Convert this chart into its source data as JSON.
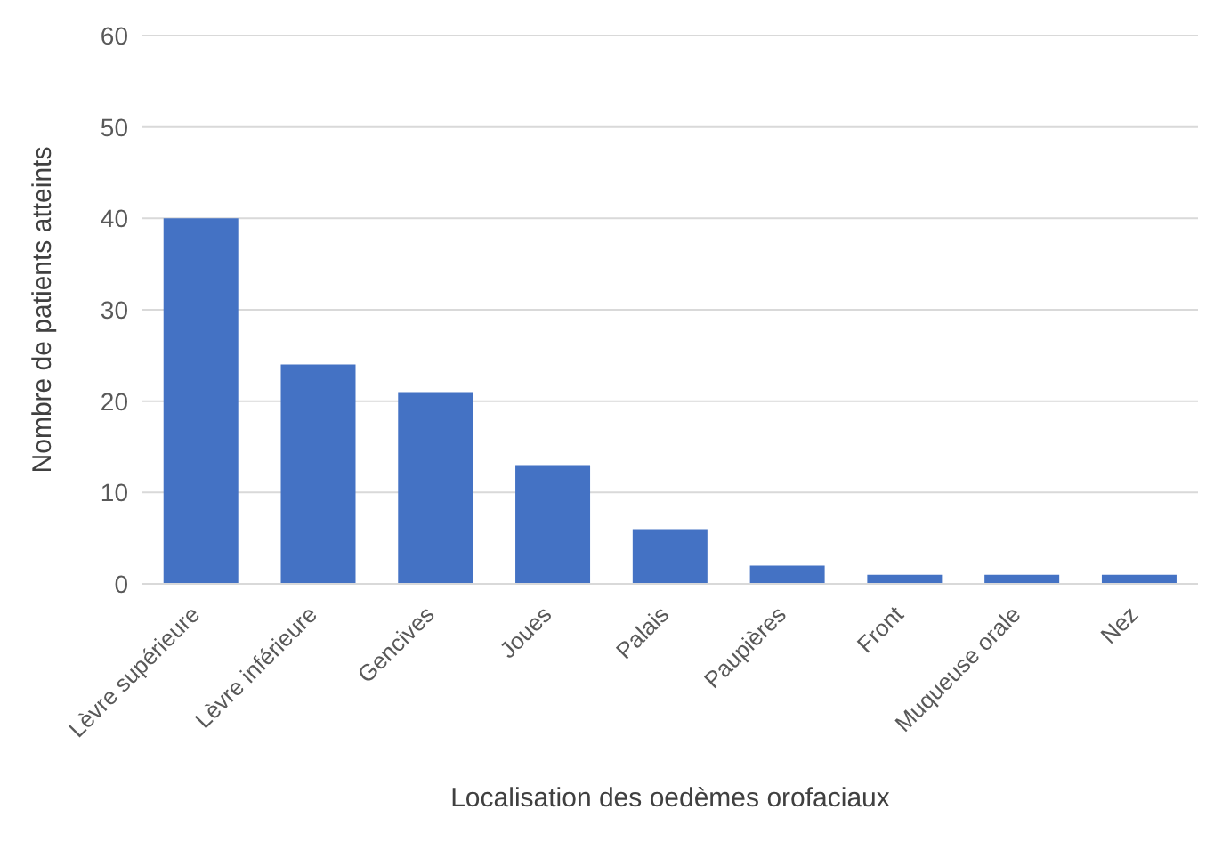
{
  "chart_data": {
    "type": "bar",
    "xlabel": "Localisation des oedèmes orofaciaux",
    "ylabel": "Nombre de patients atteints",
    "categories": [
      "Lèvre supérieure",
      "Lèvre inférieure",
      "Gencives",
      "Joues",
      "Palais",
      "Paupières",
      "Front",
      "Muqueuse orale",
      "Nez"
    ],
    "values": [
      40,
      24,
      21,
      13,
      6,
      2,
      1,
      1,
      1
    ],
    "color": "#4472c4",
    "ylim": [
      0,
      60
    ],
    "yticks": [
      0,
      10,
      20,
      30,
      40,
      50,
      60
    ],
    "grid": "y"
  }
}
